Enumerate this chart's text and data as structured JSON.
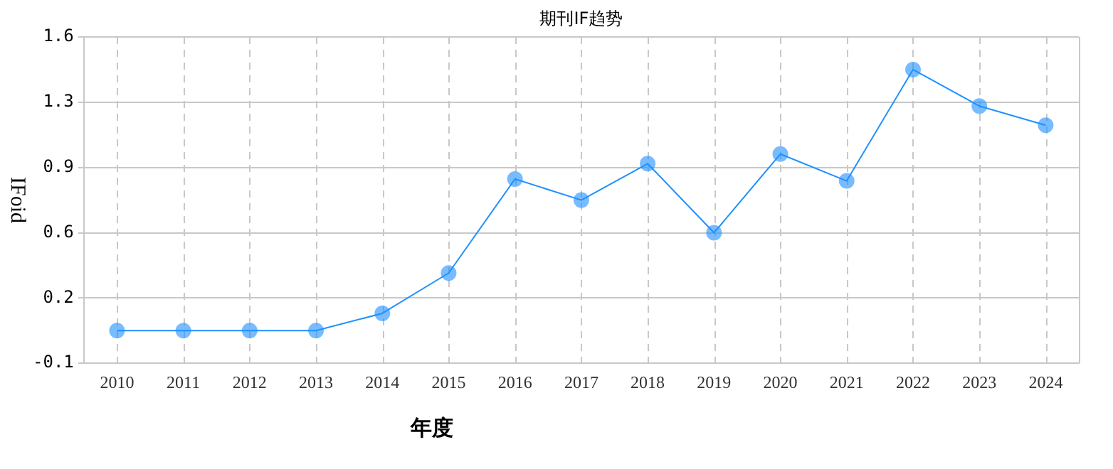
{
  "chart_data": {
    "type": "line",
    "title": "期刊IF趋势",
    "xlabel": "年度",
    "ylabel": "IFoid",
    "categories": [
      "2010",
      "2011",
      "2012",
      "2013",
      "2014",
      "2015",
      "2016",
      "2017",
      "2018",
      "2019",
      "2020",
      "2021",
      "2022",
      "2023",
      "2024"
    ],
    "series": [
      {
        "color": "#1e90ff",
        "values": [
          0.07,
          0.07,
          0.07,
          0.07,
          0.16,
          0.37,
          0.86,
          0.75,
          0.94,
          0.58,
          0.99,
          0.85,
          1.43,
          1.24,
          1.14
        ]
      }
    ],
    "ylim": [
      -0.1,
      1.6
    ],
    "yticks": [
      -0.1,
      {
        "value": 0.24,
        "label": "0.2"
      },
      {
        "value": 0.58,
        "label": "0.6"
      },
      {
        "value": 0.92,
        "label": "0.9"
      },
      {
        "value": 1.26,
        "label": "1.3"
      },
      1.6
    ],
    "grid": true,
    "legend": false,
    "marker": "circle",
    "line_style": "solid"
  }
}
